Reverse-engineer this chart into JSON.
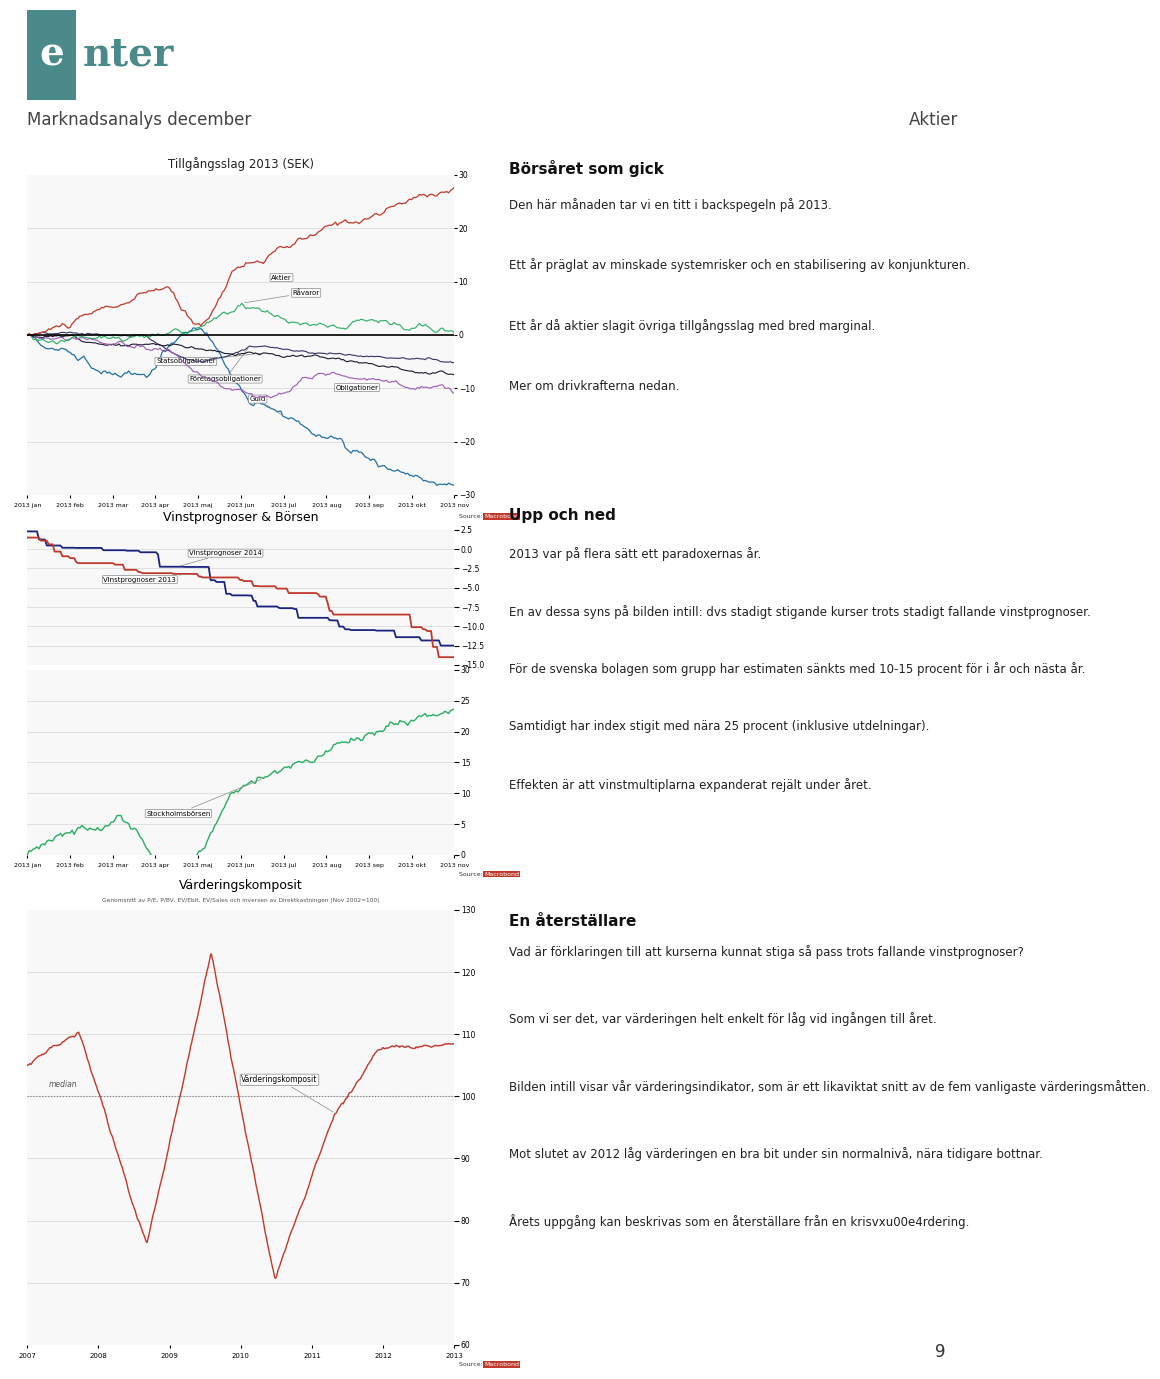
{
  "page_bg": "#ffffff",
  "header_bar_color": "#4a8a8a",
  "logo_bg": "#4a8a8a",
  "header_left": "Marknadsanalys december",
  "header_right": "Aktier",
  "chart1_title": "Tillgångsslag 2013 (SEK)",
  "chart2_title": "Vinstprognoser & Börsen",
  "chart3_title": "Värderingskomposit",
  "chart3_subtitle": "Genomsnitt av P/E, P/BV, EV/Ebit, EV/Sales och inversen av Direktkastningen (Nov 2002=100)",
  "chart3_median_label": "median",
  "chart3_series_label": "Värderingskomposit",
  "source_label": "Source:",
  "source_brand": "Macrobond",
  "page_number": "9",
  "aktier_color": "#c0392b",
  "raavaror_color": "#27ae60",
  "statsob_color": "#1a1a2e",
  "foretagsob_color": "#333366",
  "obligationer_color": "#9b59b6",
  "guld_color": "#2471a3",
  "vp2014_color": "#1a237e",
  "vp2013_color": "#c0392b",
  "sthlm_color": "#27ae60",
  "vk_color": "#c0392b",
  "text1_heading": "Börsåret som gick",
  "text1_body": "Den här månaden tar vi en titt i backspegeln på 2013.\n\nEtt år präglat av minskade systemrisker och en stabilisering av konjunkturen.\n\nEtt år då aktier slagit övriga tillgångsslag med bred marginal.\n\nMer om drivkrafterna nedan.",
  "text2_heading": "Upp och ned",
  "text2_body": "2013 var på flera sätt ett paradoxernas år.\n\nEn av dessa syns på bilden intill: dvs stadigt stigande kurser trots stadigt fallande vinstprognoser.\n\nFör de svenska bolagen som grupp har estimaten sänkts med 10-15 procent för i år och nästa år.\n\nSamtidigt har index stigit med nära 25 procent (inklusive utdelningar).\n\nEffekten är att vinstmultiplarna expanderat rejält under året.",
  "text3_heading": "En återställare",
  "text3_body": "Vad är förklaringen till att kurserna kunnat stiga så pass trots fallande vinstprognoser?\n\nSom vi ser det, var värderingen helt enkelt för låg vid ingången till året.\n\nBilden intill visar vår värderingsindikator, som är ett likaviktat snitt av de fem vanligaste värderingsmåtten.\n\nMot slutet av 2012 låg värderingen en bra bit under sin normalnivå, nära tidigare bottnar.\n\nÅrets uppgång kan beskrivas som en återställare från en krisvxu00e4rdering.",
  "months": [
    "2013 jan",
    "2013 feb",
    "2013 mar",
    "2013 apr",
    "2013 maj",
    "2013 jun",
    "2013 jul",
    "2013 aug",
    "2013 sep",
    "2013 okt",
    "2013 nov"
  ],
  "years": [
    "2007",
    "2008",
    "2009",
    "2010",
    "2011",
    "2012",
    "2013"
  ]
}
